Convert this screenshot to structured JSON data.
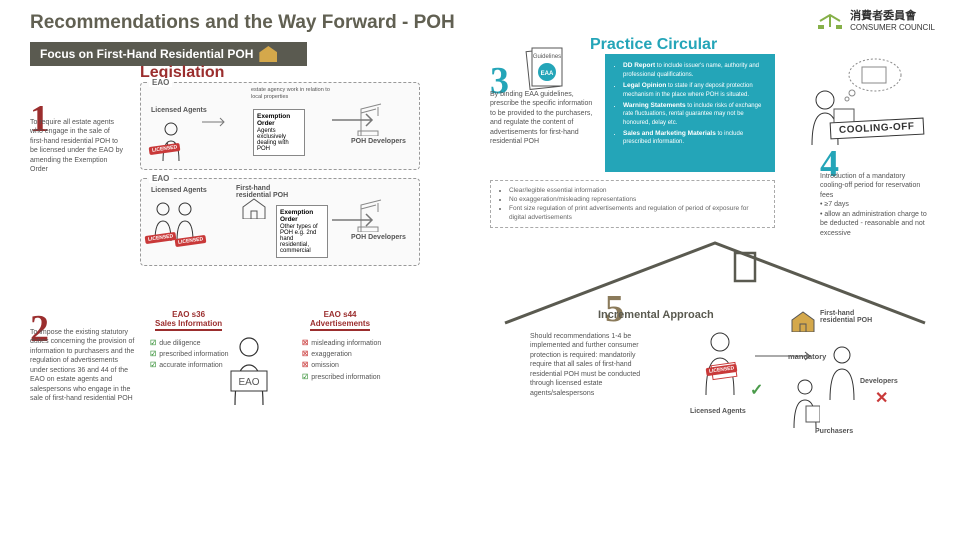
{
  "title": "Recommendations and the Way Forward - POH",
  "logo": {
    "cn": "消費者委員會",
    "en": "CONSUMER COUNCIL"
  },
  "focus_banner": "Focus on First-Hand Residential POH",
  "headers": {
    "legislation": "Legislation",
    "practice": "Practice Circular"
  },
  "items": {
    "1": {
      "num": "1",
      "text": "To require all estate agents who engage in the sale of first-hand residential POH to be licensed under the EAO by amending the Exemption Order"
    },
    "2": {
      "num": "2",
      "text": "To impose the existing statutory duties concerning the provision of information to purchasers and the regulation of advertisements under sections 36 and 44 of the EAO on estate agents and salespersons who engage in the sale of first-hand residential POH"
    },
    "3": {
      "num": "3",
      "text": "By binding EAA guidelines, prescribe the specific information to be provided to the purchasers, and regulate the content of advertisements for first-hand residential POH"
    },
    "4": {
      "num": "4",
      "text": "Introduction of a mandatory cooling-off period for reservation fees\n • ≥7 days\n • allow an administration charge to be deducted - reasonable and not excessive"
    },
    "5": {
      "num": "5",
      "label": "Incremental Approach",
      "text": "Should recommendations 1-4 be implemented and further consumer protection is required: mandatorily require that all sales of first-hand residential POH must be conducted through licensed estate agents/salespersons"
    }
  },
  "eao": {
    "label": "EAO",
    "licensed_agents": "Licensed Agents",
    "poh_dev": "POH Developers",
    "estate_work": "estate agency work in relation to local properties",
    "exemption1": {
      "title": "Exemption Order",
      "body": "Agents exclusively dealing with POH"
    },
    "exemption2": {
      "title": "Exemption Order",
      "body": "Other types of POH e.g. 2nd hand residential, commercial"
    },
    "firsthand": "First-hand residential POH",
    "licensed": "LICENSED"
  },
  "sales": {
    "s36": "EAO s36",
    "s36_title": "Sales Information",
    "s44": "EAO s44",
    "s44_title": "Advertisements",
    "checks": [
      "due diligence",
      "prescribed information",
      "accurate information"
    ],
    "crosses": [
      "misleading information",
      "exaggeration",
      "omission",
      "prescribed information"
    ]
  },
  "teal": {
    "guidelines_label": "Guidelines",
    "items": [
      {
        "b": "DD Report",
        "t": " to include issuer's name, authority and professional qualifications."
      },
      {
        "b": "Legal Opinion",
        "t": " to state if any deposit protection mechanism in the place where POH is situated."
      },
      {
        "b": "Warning Statements",
        "t": " to include risks of exchange rate fluctuations, rental guarantee may not be honoured, delay etc."
      },
      {
        "b": "Sales and Marketing Materials",
        "t": " to include prescribed information."
      }
    ]
  },
  "gray_guidelines": [
    "Clear/legible essential information",
    "No exaggeration/misleading representations",
    "Font size regulation of print advertisements and regulation of period of exposure for digital advertisements"
  ],
  "cooling": "COOLING-OFF",
  "sec5_labels": {
    "firsthand": "First-hand residential POH",
    "mandatory": "mandatory",
    "licensed_agents": "Licensed Agents",
    "developers": "Developers",
    "purchasers": "Purchasers"
  },
  "colors": {
    "red": "#9b2e2e",
    "teal": "#24a5b8",
    "brown": "#8a7a5a",
    "dark": "#5a5a50",
    "green": "#86b049"
  }
}
